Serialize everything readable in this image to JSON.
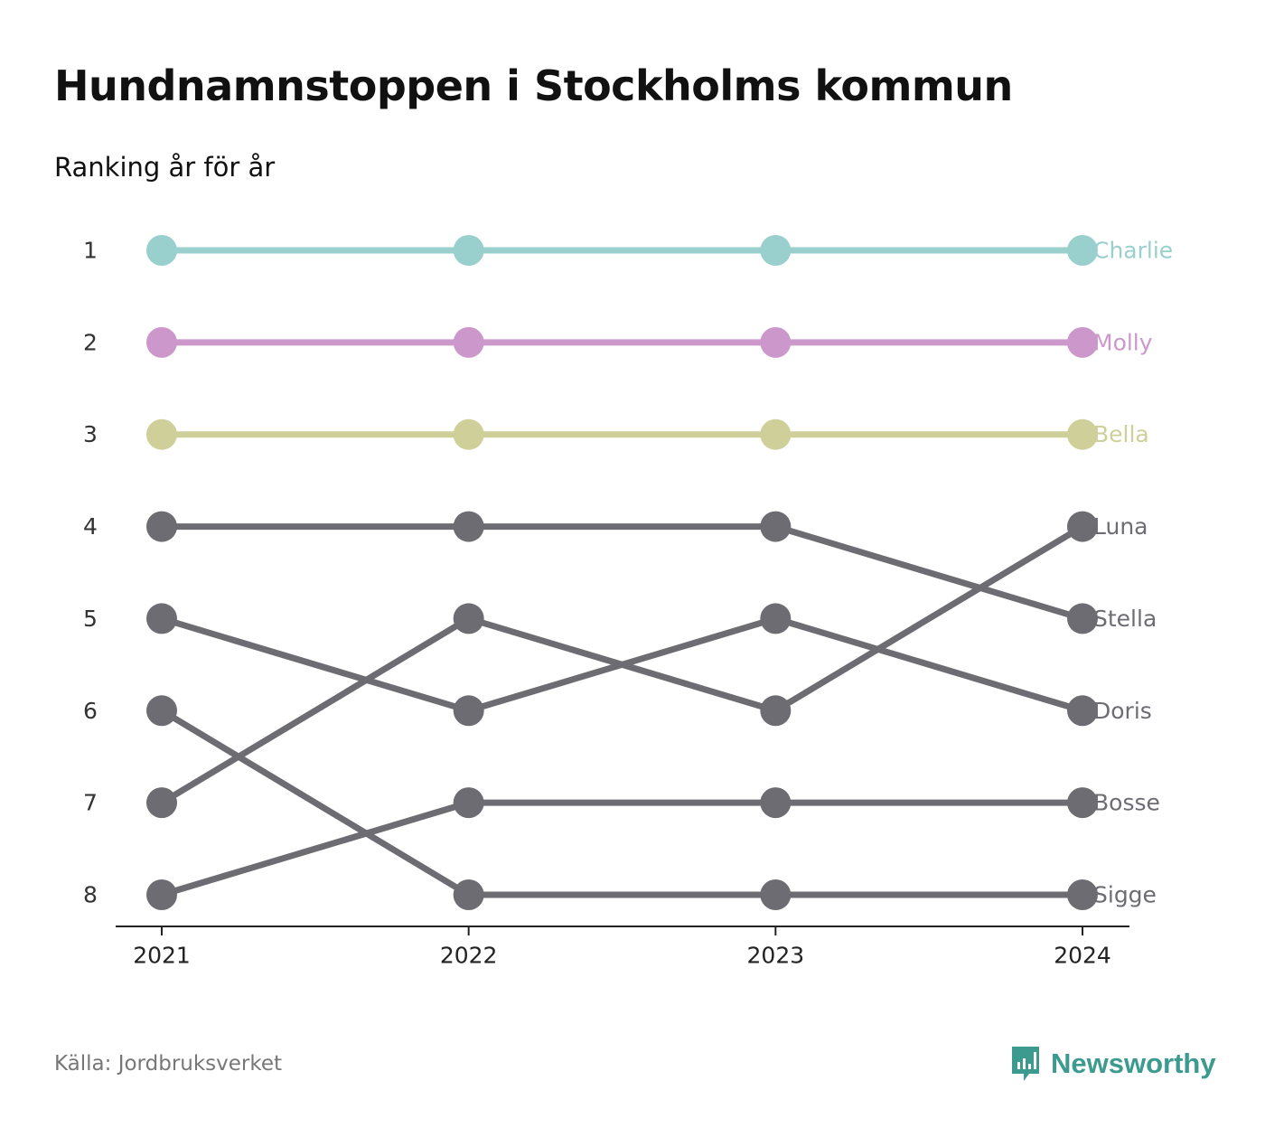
{
  "title": "Hundnamnstoppen i Stockholms kommun",
  "subtitle": "Ranking år för år",
  "source": "Källa: Jordbruksverket",
  "brand": {
    "name": "Newsworthy",
    "color": "#3d9a8f",
    "icon": "newsworthy-logo-icon"
  },
  "chart_data": {
    "type": "line",
    "chart_subtype": "bump",
    "x": [
      "2021",
      "2022",
      "2023",
      "2024"
    ],
    "ranks": [
      "1",
      "2",
      "3",
      "4",
      "5",
      "6",
      "7",
      "8"
    ],
    "y_reversed": true,
    "ylim": [
      1,
      8
    ],
    "grid": false,
    "legend": "labels at end of lines (right)",
    "series": [
      {
        "name": "Charlie",
        "values": [
          1,
          1,
          1,
          1
        ],
        "color": "#99cfcd"
      },
      {
        "name": "Molly",
        "values": [
          2,
          2,
          2,
          2
        ],
        "color": "#cc98cc"
      },
      {
        "name": "Bella",
        "values": [
          3,
          3,
          3,
          3
        ],
        "color": "#cfcf99"
      },
      {
        "name": "Luna",
        "values": [
          7,
          5,
          6,
          4
        ],
        "color": "#6d6c72"
      },
      {
        "name": "Stella",
        "values": [
          4,
          4,
          4,
          5
        ],
        "color": "#6d6c72"
      },
      {
        "name": "Doris",
        "values": [
          5,
          6,
          5,
          6
        ],
        "color": "#6d6c72"
      },
      {
        "name": "Bosse",
        "values": [
          8,
          7,
          7,
          7
        ],
        "color": "#6d6c72"
      },
      {
        "name": "Sigge",
        "values": [
          6,
          8,
          8,
          8
        ],
        "color": "#6d6c72"
      }
    ]
  }
}
